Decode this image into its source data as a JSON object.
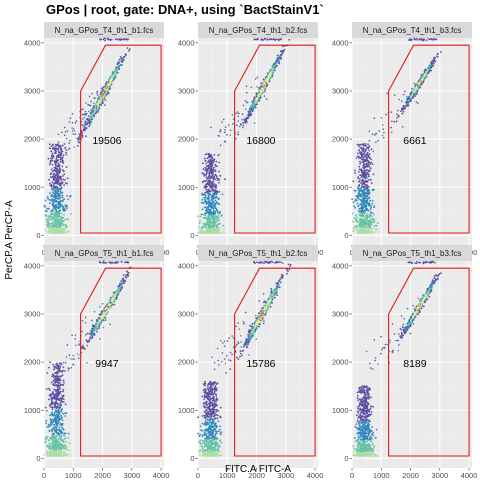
{
  "chart_data": {
    "type": "scatter",
    "title": "GPos  |  root, gate: DNA+, using `BactStainV1`",
    "xlabel": "FITC.A FITC-A",
    "ylabel": "PerCP.A PerCP-A",
    "xlim": [
      0,
      4100
    ],
    "ylim": [
      -200,
      4100
    ],
    "x_ticks": [
      0,
      1000,
      2000,
      3000,
      4000
    ],
    "y_ticks": [
      0,
      1000,
      2000,
      3000,
      4000
    ],
    "grid": true,
    "gate_color": "#e31a1c",
    "gate_polygon": [
      [
        1250,
        50
      ],
      [
        1250,
        3000
      ],
      [
        2100,
        3950
      ],
      [
        4000,
        3950
      ],
      [
        4000,
        50
      ]
    ],
    "density_palette": [
      "#5e4fa2",
      "#3288bd",
      "#66c2a5",
      "#abdda4",
      "#e6f598",
      "#fee08b",
      "#fdae61",
      "#f46d43",
      "#d53e4f"
    ],
    "panels": [
      {
        "name": "N_na_GPos_T4_th1_b1.fcs",
        "count": "19506",
        "bg": {
          "x": 450,
          "y0": 50,
          "y1": 1900,
          "xw": 170
        },
        "pop": {
          "cx": 2050,
          "cy": 2950,
          "sx": 300,
          "sy": 420,
          "tail": 0.8,
          "hot": 0.85
        }
      },
      {
        "name": "N_na_GPos_T4_th1_b2.fcs",
        "count": "16800",
        "bg": {
          "x": 430,
          "y0": 50,
          "y1": 1700,
          "xw": 160
        },
        "pop": {
          "cx": 2250,
          "cy": 3100,
          "sx": 260,
          "sy": 360,
          "tail": 0.55,
          "hot": 0.7
        }
      },
      {
        "name": "N_na_GPos_T4_th1_b3.fcs",
        "count": "6661",
        "bg": {
          "x": 420,
          "y0": 50,
          "y1": 1900,
          "xw": 150
        },
        "pop": {
          "cx": 2300,
          "cy": 3150,
          "sx": 230,
          "sy": 270,
          "tail": 0.35,
          "hot": 0.45
        }
      },
      {
        "name": "N_na_GPos_T5_th1_b1.fcs",
        "count": "9947",
        "bg": {
          "x": 440,
          "y0": 50,
          "y1": 2000,
          "xw": 150
        },
        "pop": {
          "cx": 2150,
          "cy": 3100,
          "sx": 280,
          "sy": 350,
          "tail": 0.5,
          "hot": 0.55
        }
      },
      {
        "name": "N_na_GPos_T5_th1_b2.fcs",
        "count": "15786",
        "bg": {
          "x": 430,
          "y0": 50,
          "y1": 1600,
          "xw": 160
        },
        "pop": {
          "cx": 2200,
          "cy": 3000,
          "sx": 280,
          "sy": 380,
          "tail": 0.55,
          "hot": 0.7
        }
      },
      {
        "name": "N_na_GPos_T5_th1_b3.fcs",
        "count": "8189",
        "bg": {
          "x": 430,
          "y0": 50,
          "y1": 1500,
          "xw": 140
        },
        "pop": {
          "cx": 2300,
          "cy": 3150,
          "sx": 240,
          "sy": 300,
          "tail": 0.4,
          "hot": 0.5
        }
      }
    ]
  }
}
